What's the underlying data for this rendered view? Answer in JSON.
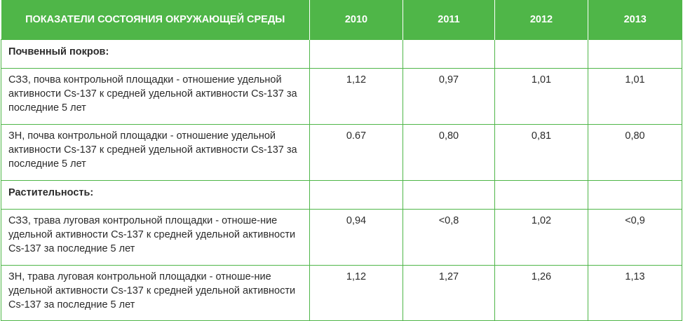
{
  "table": {
    "header": {
      "indicator": "ПОКАЗАТЕЛИ СОСТОЯНИЯ ОКРУЖАЮЩЕЙ СРЕДЫ",
      "years": [
        "2010",
        "2011",
        "2012",
        "2013"
      ]
    },
    "sections": [
      {
        "title": "Почвенный покров:",
        "rows": [
          {
            "label": "СЗЗ, почва контрольной площадки - отношение удельной активности Cs-137 к средней удельной активности Cs-137 за последние 5 лет",
            "values": [
              "1,12",
              "0,97",
              "1,01",
              "1,01"
            ]
          },
          {
            "label": "ЗН, почва контрольной площадки - отношение удельной активности Cs-137 к средней удельной активности Cs-137 за последние 5 лет",
            "values": [
              "0.67",
              "0,80",
              "0,81",
              "0,80"
            ]
          }
        ]
      },
      {
        "title": "Растительность:",
        "rows": [
          {
            "label": "СЗЗ, трава луговая контрольной площадки - отноше-ние удельной активности Cs-137 к средней удельной активности Cs-137 за последние 5 лет",
            "values": [
              "0,94",
              "<0,8",
              "1,02",
              "<0,9"
            ]
          },
          {
            "label": "ЗН, трава луговая контрольной площадки - отноше-ние удельной активности Cs-137 к средней удельной активности Cs-137 за последние 5 лет",
            "values": [
              "1,12",
              "1,27",
              "1,26",
              "1,13"
            ]
          }
        ]
      }
    ],
    "colors": {
      "accent": "#4fb648",
      "header_text": "#ffffff",
      "body_text": "#2b2b2b"
    }
  }
}
